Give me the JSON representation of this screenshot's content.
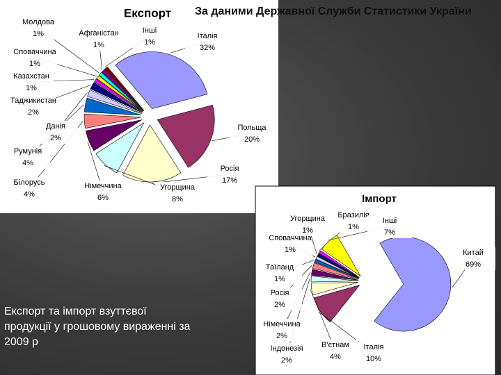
{
  "chart_data": [
    {
      "type": "pie",
      "title": "Експорт",
      "categories": [
        "Італія",
        "Польща",
        "Росія",
        "Угорщина",
        "Німеччина",
        "Білорусь",
        "Румунія",
        "Данія",
        "Таджикистан",
        "Казахстан",
        "Споваччина",
        "Молдова",
        "Афганістан",
        "Інші"
      ],
      "values": [
        32,
        20,
        17,
        8,
        6,
        4,
        4,
        2,
        2,
        1,
        1,
        1,
        1,
        1
      ],
      "value_labels": [
        "32%",
        "20%",
        "17%",
        "8%",
        "6%",
        "4%",
        "4%",
        "2%",
        "2%",
        "1%",
        "1%",
        "1%",
        "1%",
        "1%"
      ],
      "colors": [
        "#9999ff",
        "#993366",
        "#ffffcc",
        "#ccffff",
        "#660066",
        "#ff8080",
        "#0066cc",
        "#ccccff",
        "#000080",
        "#ff00ff",
        "#ffff00",
        "#00ffff",
        "#800080",
        "#800000"
      ]
    },
    {
      "type": "pie",
      "title": "Імпорт",
      "categories": [
        "Китай",
        "Італія",
        "В'єтнам",
        "Індонезія",
        "Німеччина",
        "Росія",
        "Таїланд",
        "Споваччина",
        "Угорщина",
        "Бразилія",
        "Інші"
      ],
      "values": [
        69,
        10,
        4,
        2,
        2,
        2,
        1,
        1,
        1,
        1,
        7
      ],
      "value_labels": [
        "69%",
        "10%",
        "4%",
        "2%",
        "2%",
        "2%",
        "1%",
        "1%",
        "1%",
        "1%",
        "7%"
      ],
      "colors": [
        "#9999ff",
        "#993366",
        "#ffffcc",
        "#ccffff",
        "#660066",
        "#ff8080",
        "#0066cc",
        "#ccccff",
        "#000080",
        "#ff00ff",
        "#ffff00"
      ]
    }
  ],
  "slide": {
    "source": "За даними Державної Служби Статистики України",
    "caption": "Експорт та імпорт взуттєвої продукції у грошовому вираженні за 2009 р"
  }
}
